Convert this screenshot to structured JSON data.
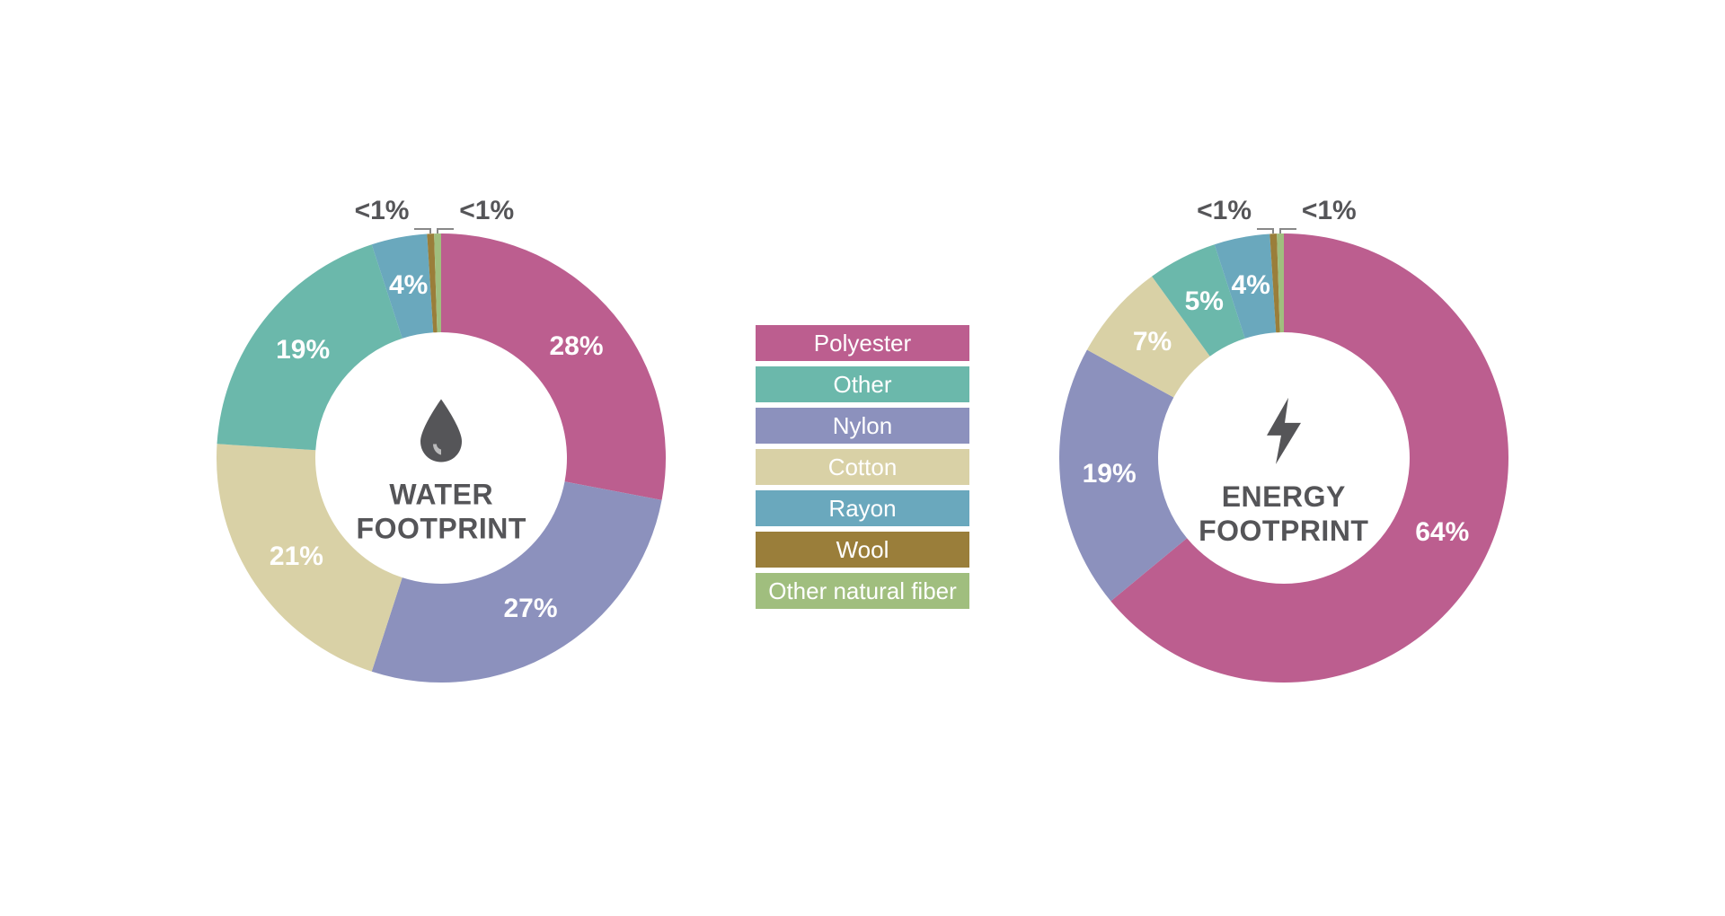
{
  "colors": {
    "polyester": "#bc5e8f",
    "other": "#6bb8ab",
    "nylon": "#8c91bd",
    "cotton": "#d9d1a6",
    "rayon": "#6aa8bd",
    "wool": "#9a7e3a",
    "other_natural_fiber": "#a0be7e",
    "text_dark": "#555558",
    "text_white": "#ffffff",
    "background": "#ffffff",
    "callout_line": "#888888"
  },
  "legend": [
    {
      "label": "Polyester",
      "color_key": "polyester"
    },
    {
      "label": "Other",
      "color_key": "other"
    },
    {
      "label": "Nylon",
      "color_key": "nylon"
    },
    {
      "label": "Cotton",
      "color_key": "cotton"
    },
    {
      "label": "Rayon",
      "color_key": "rayon"
    },
    {
      "label": "Wool",
      "color_key": "wool"
    },
    {
      "label": "Other natural fiber",
      "color_key": "other_natural_fiber"
    }
  ],
  "charts": {
    "water": {
      "type": "donut",
      "title_line1": "WATER",
      "title_line2": "FOOTPRINT",
      "icon": "water-drop",
      "outer_radius": 250,
      "inner_radius": 140,
      "label_radius": 195,
      "slices": [
        {
          "key": "polyester",
          "value": 28,
          "label": "28%",
          "inside": true
        },
        {
          "key": "nylon",
          "value": 27,
          "label": "27%",
          "inside": true
        },
        {
          "key": "cotton",
          "value": 21,
          "label": "21%",
          "inside": true
        },
        {
          "key": "other",
          "value": 19,
          "label": "19%",
          "inside": true
        },
        {
          "key": "rayon",
          "value": 4,
          "label": "4%",
          "inside": true
        },
        {
          "key": "wool",
          "value": 0.5,
          "label": "<1%",
          "inside": false,
          "callout": "left"
        },
        {
          "key": "other_natural_fiber",
          "value": 0.5,
          "label": "<1%",
          "inside": false,
          "callout": "right"
        }
      ]
    },
    "energy": {
      "type": "donut",
      "title_line1": "ENERGY",
      "title_line2": "FOOTPRINT",
      "icon": "lightning-bolt",
      "outer_radius": 250,
      "inner_radius": 140,
      "label_radius": 195,
      "slices": [
        {
          "key": "polyester",
          "value": 64,
          "label": "64%",
          "inside": true
        },
        {
          "key": "nylon",
          "value": 19,
          "label": "19%",
          "inside": true
        },
        {
          "key": "cotton",
          "value": 7,
          "label": "7%",
          "inside": true
        },
        {
          "key": "other",
          "value": 5,
          "label": "5%",
          "inside": true
        },
        {
          "key": "rayon",
          "value": 4,
          "label": "4%",
          "inside": true
        },
        {
          "key": "wool",
          "value": 0.5,
          "label": "<1%",
          "inside": false,
          "callout": "left"
        },
        {
          "key": "other_natural_fiber",
          "value": 0.5,
          "label": "<1%",
          "inside": false,
          "callout": "right"
        }
      ]
    }
  },
  "typography": {
    "slice_label_fontsize": 30,
    "slice_label_fontweight": 700,
    "title_fontsize": 32,
    "title_fontweight": 700,
    "legend_fontsize": 26,
    "callout_fontsize": 30
  }
}
